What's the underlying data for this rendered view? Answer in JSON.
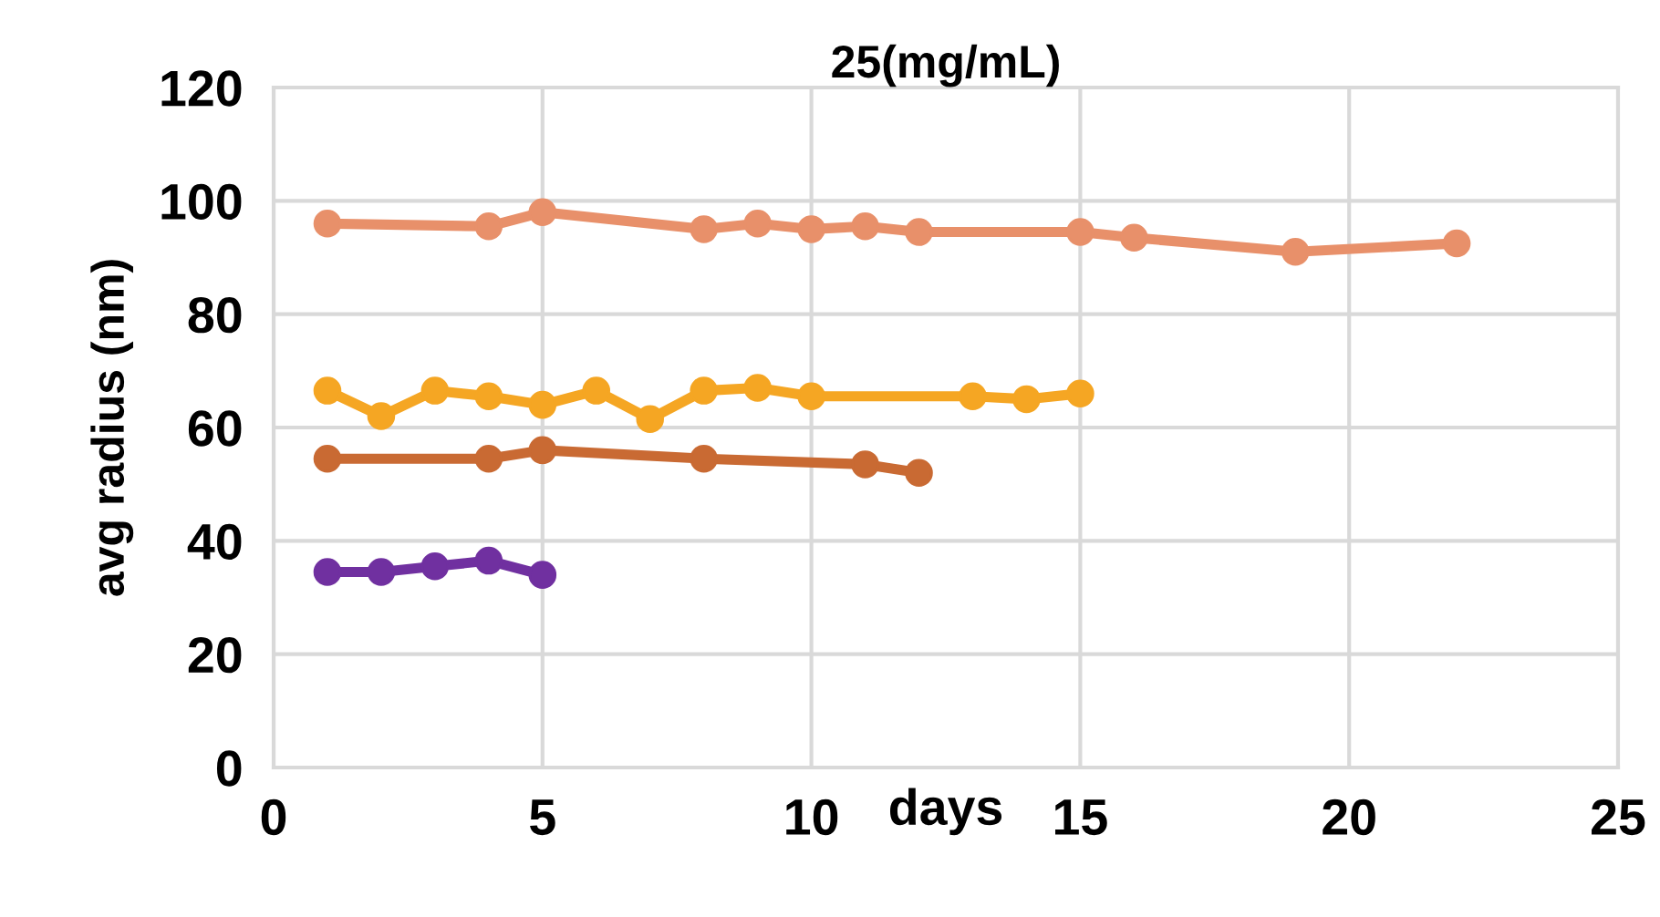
{
  "chart_data": {
    "type": "line",
    "title": "25(mg/mL)",
    "xlabel": "days",
    "ylabel": "avg radius (nm)",
    "xlim": [
      0,
      25
    ],
    "xticks": [
      0,
      5,
      10,
      15,
      20,
      25
    ],
    "ylim": [
      0,
      120
    ],
    "yticks": [
      0,
      20,
      40,
      60,
      80,
      100,
      120
    ],
    "grid": true,
    "marker": "circle",
    "line_style": "solid",
    "series": [
      {
        "color": "#e8906a",
        "x": [
          1,
          4,
          5,
          8,
          9,
          10,
          11,
          12,
          15,
          16,
          19,
          22
        ],
        "values": [
          96,
          95.5,
          98,
          95,
          96,
          95,
          95.5,
          94.5,
          94.5,
          93.5,
          91,
          92.5
        ]
      },
      {
        "color": "#f5a623",
        "x": [
          1,
          2,
          3,
          4,
          5,
          6,
          7,
          8,
          9,
          10,
          13,
          14,
          15
        ],
        "values": [
          66.5,
          62,
          66.5,
          65.5,
          64,
          66.5,
          61.5,
          66.5,
          67,
          65.5,
          65.5,
          65,
          66
        ]
      },
      {
        "color": "#c96a33",
        "x": [
          1,
          4,
          5,
          8,
          11,
          12
        ],
        "values": [
          54.5,
          54.5,
          56,
          54.5,
          53.5,
          52
        ]
      },
      {
        "color": "#7030a0",
        "x": [
          1,
          2,
          3,
          4,
          5
        ],
        "values": [
          34.5,
          34.5,
          35.5,
          36.5,
          34
        ]
      }
    ]
  }
}
